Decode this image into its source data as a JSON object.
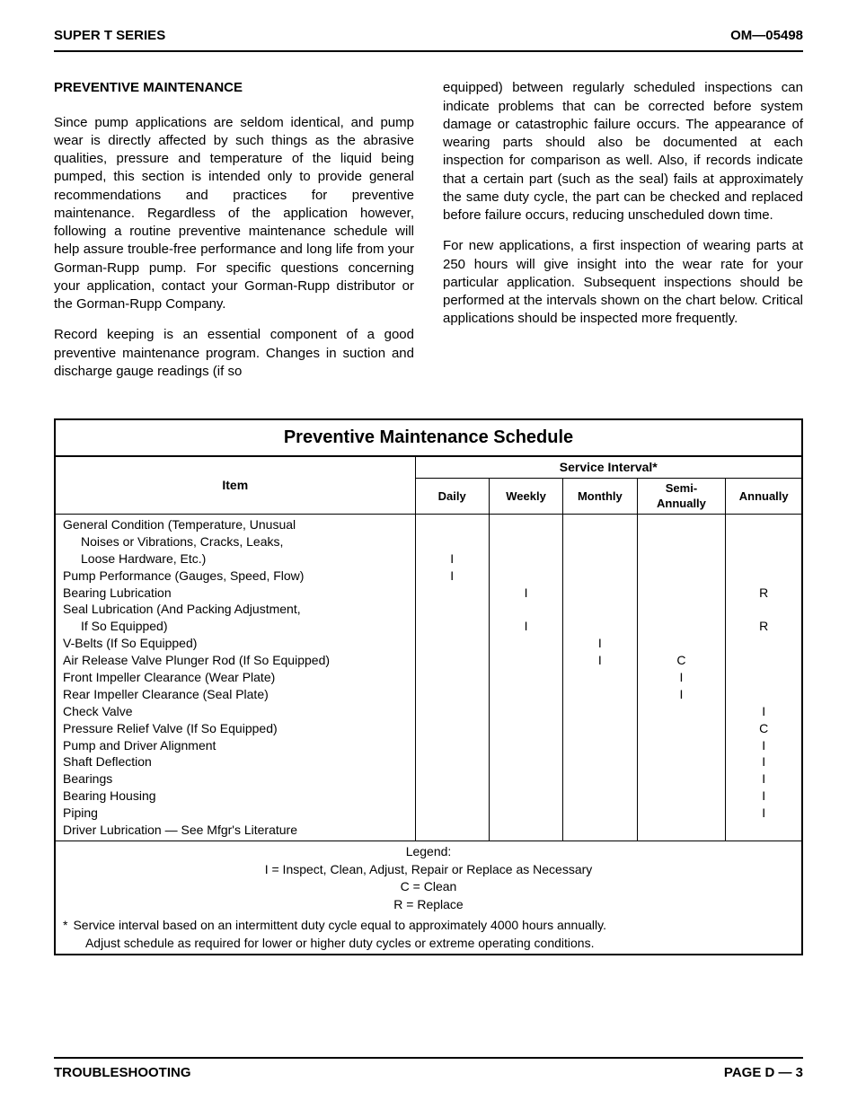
{
  "header": {
    "left": "SUPER T SERIES",
    "right": "OM—05498"
  },
  "footer": {
    "left": "TROUBLESHOOTING",
    "right": "PAGE D — 3"
  },
  "section_title": "PREVENTIVE MAINTENANCE",
  "left_col": {
    "p1": "Since pump applications are seldom identical, and pump wear is directly affected by such things as the abrasive qualities, pressure and temperature of the liquid being pumped, this section is intended only to provide general recommendations and practices for preventive maintenance. Regardless of the application however, following a routine preventive maintenance schedule will help assure trouble-free performance and long life from your Gorman-Rupp pump. For specific questions concerning your application, contact your Gorman-Rupp distributor or the Gorman-Rupp Company.",
    "p2": "Record keeping is an essential component of a good preventive maintenance program. Changes in suction and discharge gauge readings (if so"
  },
  "right_col": {
    "p1": "equipped) between regularly scheduled inspections can indicate problems that can be corrected before system damage or catastrophic failure occurs. The appearance of wearing parts should also be documented at each inspection for comparison as well. Also, if records indicate that a certain part (such as the seal) fails at approximately the same duty cycle, the part can be checked and replaced before failure occurs, reducing unscheduled down time.",
    "p2": "For new applications, a first inspection of wearing parts at 250 hours will give insight into the wear rate for your particular application. Subsequent inspections should be performed at the intervals shown on the chart below. Critical applications should be inspected more frequently."
  },
  "table": {
    "title": "Preventive Maintenance Schedule",
    "item_header": "Item",
    "service_header": "Service Interval*",
    "cols": [
      "Daily",
      "Weekly",
      "Monthly",
      "Semi-\nAnnually",
      "Annually"
    ],
    "rows": [
      {
        "item": "General Condition (Temperature, Unusual",
        "vals": [
          "",
          "",
          "",
          "",
          ""
        ]
      },
      {
        "item": "Noises or Vibrations, Cracks, Leaks,",
        "indent": true,
        "vals": [
          "",
          "",
          "",
          "",
          ""
        ]
      },
      {
        "item": "Loose Hardware, Etc.)",
        "indent": true,
        "vals": [
          "I",
          "",
          "",
          "",
          ""
        ]
      },
      {
        "item": "Pump Performance (Gauges, Speed, Flow)",
        "vals": [
          "I",
          "",
          "",
          "",
          ""
        ]
      },
      {
        "item": "Bearing Lubrication",
        "vals": [
          "",
          "I",
          "",
          "",
          "R"
        ]
      },
      {
        "item": "Seal Lubrication (And Packing Adjustment,",
        "vals": [
          "",
          "",
          "",
          "",
          ""
        ]
      },
      {
        "item": "If So Equipped)",
        "indent": true,
        "vals": [
          "",
          "I",
          "",
          "",
          "R"
        ]
      },
      {
        "item": "V-Belts (If So Equipped)",
        "vals": [
          "",
          "",
          "I",
          "",
          ""
        ]
      },
      {
        "item": "Air Release Valve Plunger Rod (If So Equipped)",
        "vals": [
          "",
          "",
          "I",
          "C",
          ""
        ]
      },
      {
        "item": "Front Impeller Clearance (Wear Plate)",
        "vals": [
          "",
          "",
          "",
          "I",
          ""
        ]
      },
      {
        "item": "Rear Impeller Clearance (Seal Plate)",
        "vals": [
          "",
          "",
          "",
          "I",
          ""
        ]
      },
      {
        "item": "Check Valve",
        "vals": [
          "",
          "",
          "",
          "",
          "I"
        ]
      },
      {
        "item": "Pressure Relief Valve (If So Equipped)",
        "vals": [
          "",
          "",
          "",
          "",
          "C"
        ]
      },
      {
        "item": "Pump and Driver Alignment",
        "vals": [
          "",
          "",
          "",
          "",
          "I"
        ]
      },
      {
        "item": "Shaft Deflection",
        "vals": [
          "",
          "",
          "",
          "",
          "I"
        ]
      },
      {
        "item": "Bearings",
        "vals": [
          "",
          "",
          "",
          "",
          "I"
        ]
      },
      {
        "item": "Bearing Housing",
        "vals": [
          "",
          "",
          "",
          "",
          "I"
        ]
      },
      {
        "item": "Piping",
        "vals": [
          "",
          "",
          "",
          "",
          "I"
        ]
      },
      {
        "item": "Driver Lubrication — See Mfgr's Literature",
        "vals": [
          "",
          "",
          "",
          "",
          ""
        ]
      }
    ],
    "legend": {
      "title": "Legend:",
      "lines": [
        "I  =  Inspect, Clean, Adjust, Repair or Replace as Necessary",
        "C =  Clean",
        "R =  Replace"
      ]
    },
    "note": {
      "asterisk": "*",
      "l1": "Service interval based on an intermittent duty cycle equal to approximately 4000 hours annually.",
      "l2": "Adjust schedule as required for lower or higher duty cycles or extreme operating conditions."
    }
  }
}
